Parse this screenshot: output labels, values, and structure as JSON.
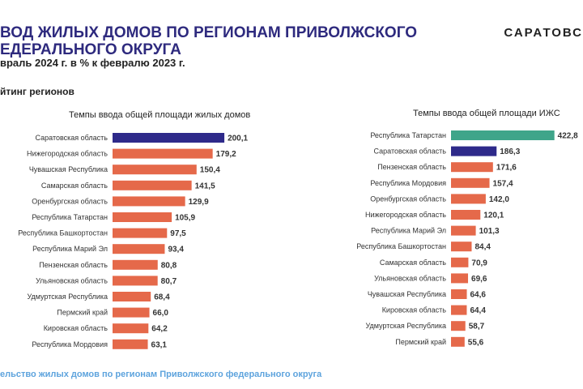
{
  "header": {
    "title": "вод жилых домов по регионам  Приволжского\nедерального округа",
    "subtitle": "враль 2024 г.  в % к февралю 2023 г.",
    "brand": "САРАТОВС",
    "section": "йтинг регионов",
    "footer": "ельство жилых домов по регионам Приволжского федерального округа"
  },
  "colors": {
    "highlight": "#2e2a8a",
    "bar": "#e5694a",
    "top": "#3fa58a"
  },
  "chart_data": [
    {
      "type": "bar",
      "orientation": "horizontal",
      "title": "Темпы ввода общей площади жилых домов",
      "categories": [
        "Саратовская область",
        "Нижегородская область",
        "Чувашская Республика",
        "Самарская область",
        "Оренбургская область",
        "Республика Татарстан",
        "Республика Башкортостан",
        "Республика Марий Эл",
        "Пензенская область",
        "Ульяновская область",
        "Удмуртская Республика",
        "Пермский край",
        "Кировская область",
        "Республика Мордовия"
      ],
      "values": [
        200.1,
        179.2,
        150.4,
        141.5,
        129.9,
        105.9,
        97.5,
        93.4,
        80.8,
        80.7,
        68.4,
        66.0,
        64.2,
        63.1
      ],
      "labels": [
        "200,1",
        "179,2",
        "150,4",
        "141,5",
        "129,9",
        "105,9",
        "97,5",
        "93,4",
        "80,8",
        "80,7",
        "68,4",
        "66,0",
        "64,2",
        "63,1"
      ],
      "bar_colors": [
        "highlight",
        "bar",
        "bar",
        "bar",
        "bar",
        "bar",
        "bar",
        "bar",
        "bar",
        "bar",
        "bar",
        "bar",
        "bar",
        "bar"
      ]
    },
    {
      "type": "bar",
      "orientation": "horizontal",
      "title": "Темпы ввода общей площади ИЖС",
      "categories": [
        "Республика Татарстан",
        "Саратовская область",
        "Пензенская область",
        "Республика Мордовия",
        "Оренбургская область",
        "Нижегородская область",
        "Республика Марий Эл",
        "Республика Башкортостан",
        "Самарская область",
        "Ульяновская область",
        "Чувашская Республика",
        "Кировская область",
        "Удмуртская Республика",
        "Пермский край"
      ],
      "values": [
        422.8,
        186.3,
        171.6,
        157.4,
        142.0,
        120.1,
        101.3,
        84.4,
        70.9,
        69.6,
        64.6,
        64.4,
        58.7,
        55.6
      ],
      "labels": [
        "422,8",
        "186,3",
        "171,6",
        "157,4",
        "142,0",
        "120,1",
        "101,3",
        "84,4",
        "70,9",
        "69,6",
        "64,6",
        "64,4",
        "58,7",
        "55,6"
      ],
      "bar_colors": [
        "top",
        "highlight",
        "bar",
        "bar",
        "bar",
        "bar",
        "bar",
        "bar",
        "bar",
        "bar",
        "bar",
        "bar",
        "bar",
        "bar"
      ]
    }
  ]
}
